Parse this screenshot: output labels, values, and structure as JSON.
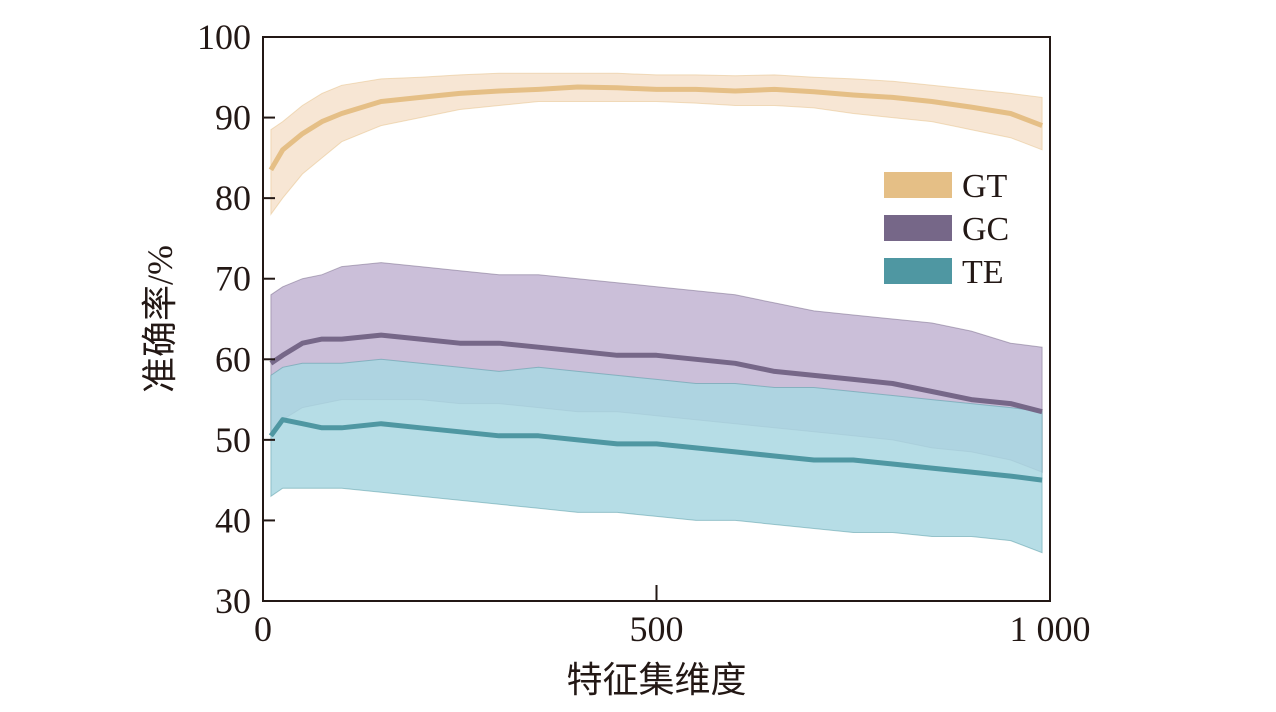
{
  "chart_data": {
    "type": "line",
    "xlabel": "特征集维度",
    "ylabel": "准确率/%",
    "xlim": [
      0,
      1000
    ],
    "ylim": [
      30,
      100
    ],
    "x_ticks": [
      {
        "value": 0,
        "label": "0"
      },
      {
        "value": 500,
        "label": "500"
      },
      {
        "value": 1000,
        "label": "1 000"
      }
    ],
    "y_ticks": [
      {
        "value": 30,
        "label": "30"
      },
      {
        "value": 40,
        "label": "40"
      },
      {
        "value": 50,
        "label": "50"
      },
      {
        "value": 60,
        "label": "60"
      },
      {
        "value": 70,
        "label": "70"
      },
      {
        "value": 80,
        "label": "80"
      },
      {
        "value": 90,
        "label": "90"
      },
      {
        "value": 100,
        "label": "100"
      }
    ],
    "grid": false,
    "legend_position": "right",
    "x": [
      10,
      25,
      50,
      75,
      100,
      150,
      200,
      250,
      300,
      350,
      400,
      450,
      500,
      550,
      600,
      650,
      700,
      750,
      800,
      850,
      900,
      950,
      990
    ],
    "series": [
      {
        "name": "GT",
        "color": "#e5bf86",
        "band_color": "#f7e6d4",
        "values": [
          83.5,
          86,
          88,
          89.5,
          90.5,
          92,
          92.5,
          93,
          93.3,
          93.5,
          93.8,
          93.7,
          93.5,
          93.5,
          93.3,
          93.5,
          93.2,
          92.8,
          92.5,
          92,
          91.3,
          90.5,
          89
        ],
        "lower": [
          78,
          80,
          83,
          85,
          87,
          89,
          90,
          91,
          91.5,
          92,
          92,
          92,
          92,
          91.8,
          91.5,
          91.5,
          91.2,
          90.5,
          90,
          89.5,
          88.5,
          87.5,
          86
        ],
        "upper": [
          88.5,
          89.5,
          91.5,
          93,
          94,
          94.8,
          95,
          95.3,
          95.5,
          95.5,
          95.5,
          95.5,
          95.3,
          95.3,
          95.2,
          95.3,
          95,
          94.8,
          94.5,
          94,
          93.5,
          93,
          92.5
        ]
      },
      {
        "name": "GC",
        "color": "#766788",
        "band_color": "#cbbfd9",
        "values": [
          59.5,
          60.5,
          62,
          62.5,
          62.5,
          63,
          62.5,
          62,
          62,
          61.5,
          61,
          60.5,
          60.5,
          60,
          59.5,
          58.5,
          58,
          57.5,
          57,
          56,
          55,
          54.5,
          53.5
        ],
        "lower": [
          51,
          52.5,
          54,
          54.5,
          55,
          55,
          55,
          54.5,
          54.5,
          54,
          53.5,
          53.5,
          53,
          52.5,
          52,
          51.5,
          51,
          50.5,
          50,
          49,
          48.5,
          47.5,
          46
        ],
        "upper": [
          68,
          69,
          70,
          70.5,
          71.5,
          72,
          71.5,
          71,
          70.5,
          70.5,
          70,
          69.5,
          69,
          68.5,
          68,
          67,
          66,
          65.5,
          65,
          64.5,
          63.5,
          62,
          61.5
        ]
      },
      {
        "name": "TE",
        "color": "#4f97a2",
        "band_color": "#a9d7e2",
        "values": [
          50.5,
          52.5,
          52,
          51.5,
          51.5,
          52,
          51.5,
          51,
          50.5,
          50.5,
          50,
          49.5,
          49.5,
          49,
          48.5,
          48,
          47.5,
          47.5,
          47,
          46.5,
          46,
          45.5,
          45
        ],
        "lower": [
          43,
          44,
          44,
          44,
          44,
          43.5,
          43,
          42.5,
          42,
          41.5,
          41,
          41,
          40.5,
          40,
          40,
          39.5,
          39,
          38.5,
          38.5,
          38,
          38,
          37.5,
          36
        ],
        "upper": [
          58,
          59,
          59.5,
          59.5,
          59.5,
          60,
          59.5,
          59,
          58.5,
          59,
          58.5,
          58,
          57.5,
          57,
          57,
          56.5,
          56.5,
          56,
          55.5,
          55,
          54.5,
          54,
          53.5
        ]
      }
    ]
  }
}
